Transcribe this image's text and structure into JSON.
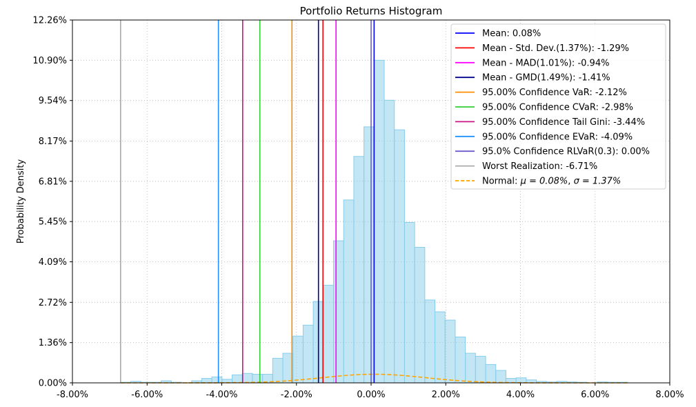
{
  "chart_data": {
    "type": "bar",
    "title": "Portfolio Returns Histogram",
    "xlabel": "",
    "ylabel": "Probability Density",
    "xlim": [
      -0.08,
      0.08
    ],
    "ylim": [
      0,
      12.26
    ],
    "x_ticks": [
      -0.08,
      -0.06,
      -0.04,
      -0.02,
      0,
      0.02,
      0.04,
      0.06,
      0.08
    ],
    "x_tick_labels": [
      "-8.00%",
      "-6.00%",
      "-4.00%",
      "-2.00%",
      "0.00%",
      "2.00%",
      "4.00%",
      "6.00%",
      "8.00%"
    ],
    "y_ticks": [
      0,
      1.36,
      2.72,
      4.09,
      5.45,
      6.81,
      8.17,
      9.54,
      10.9,
      12.26
    ],
    "y_tick_labels": [
      "0.00%",
      "1.36%",
      "2.72%",
      "4.09%",
      "5.45%",
      "6.81%",
      "8.17%",
      "9.54%",
      "10.90%",
      "12.26%"
    ],
    "grid": true,
    "legend_position": "top-right",
    "histogram": {
      "name": "",
      "color": "#87ceeb",
      "bin_start": -0.0671,
      "bin_width": 0.002716,
      "values": [
        0.02,
        0.05,
        0.02,
        0.02,
        0.07,
        0.02,
        0.0,
        0.07,
        0.15,
        0.2,
        0.12,
        0.27,
        0.32,
        0.29,
        0.29,
        0.83,
        1.0,
        1.58,
        1.95,
        2.75,
        3.3,
        4.8,
        6.18,
        7.65,
        8.65,
        10.9,
        9.55,
        8.55,
        5.42,
        4.58,
        2.8,
        2.4,
        2.12,
        1.55,
        1.0,
        0.9,
        0.62,
        0.42,
        0.15,
        0.17,
        0.1,
        0.05,
        0.03,
        0.05,
        0.03,
        0.02,
        0.0,
        0.03,
        0.02,
        0.02
      ]
    },
    "vertical_lines": [
      {
        "label": "Mean: 0.08%",
        "x": 0.0008,
        "color": "#0000ff",
        "style": "solid"
      },
      {
        "label": "Mean - Std. Dev.(1.37%): -1.29%",
        "x": -0.0129,
        "color": "#ff0000",
        "style": "solid"
      },
      {
        "label": "Mean - MAD(1.01%): -0.94%",
        "x": -0.0094,
        "color": "#ff00ff",
        "style": "solid"
      },
      {
        "label": "Mean - GMD(1.49%): -1.41%",
        "x": -0.0141,
        "color": "#00008b",
        "style": "solid"
      },
      {
        "label": "95.00% Confidence VaR: -2.12%",
        "x": -0.0212,
        "color": "#ff8c00",
        "style": "solid"
      },
      {
        "label": "95.00% Confidence CVaR: -2.98%",
        "x": -0.0298,
        "color": "#32cd32",
        "style": "solid"
      },
      {
        "label": "95.00% Confidence Tail Gini: -3.44%",
        "x": -0.0344,
        "color": "#c71585",
        "style": "solid"
      },
      {
        "label": "95.00% Confidence EVaR: -4.09%",
        "x": -0.0409,
        "color": "#1e90ff",
        "style": "solid"
      },
      {
        "label": "95.0% Confidence RLVaR(0.3): 0.00%",
        "x": 0.0,
        "color": "#6a5acd",
        "style": "solid"
      },
      {
        "label": "Worst Realization: -6.71%",
        "x": -0.0671,
        "color": "#a9a9a9",
        "style": "solid"
      }
    ],
    "normal_curve": {
      "label_prefix": "Normal: ",
      "label_mu": "μ = 0.08%",
      "label_sep": ", ",
      "label_sigma": "σ = 1.37%",
      "mu": 0.0008,
      "sigma": 0.0137,
      "x_range": [
        -0.0671,
        0.069
      ],
      "color": "#ffa500",
      "style": "dashed"
    }
  }
}
